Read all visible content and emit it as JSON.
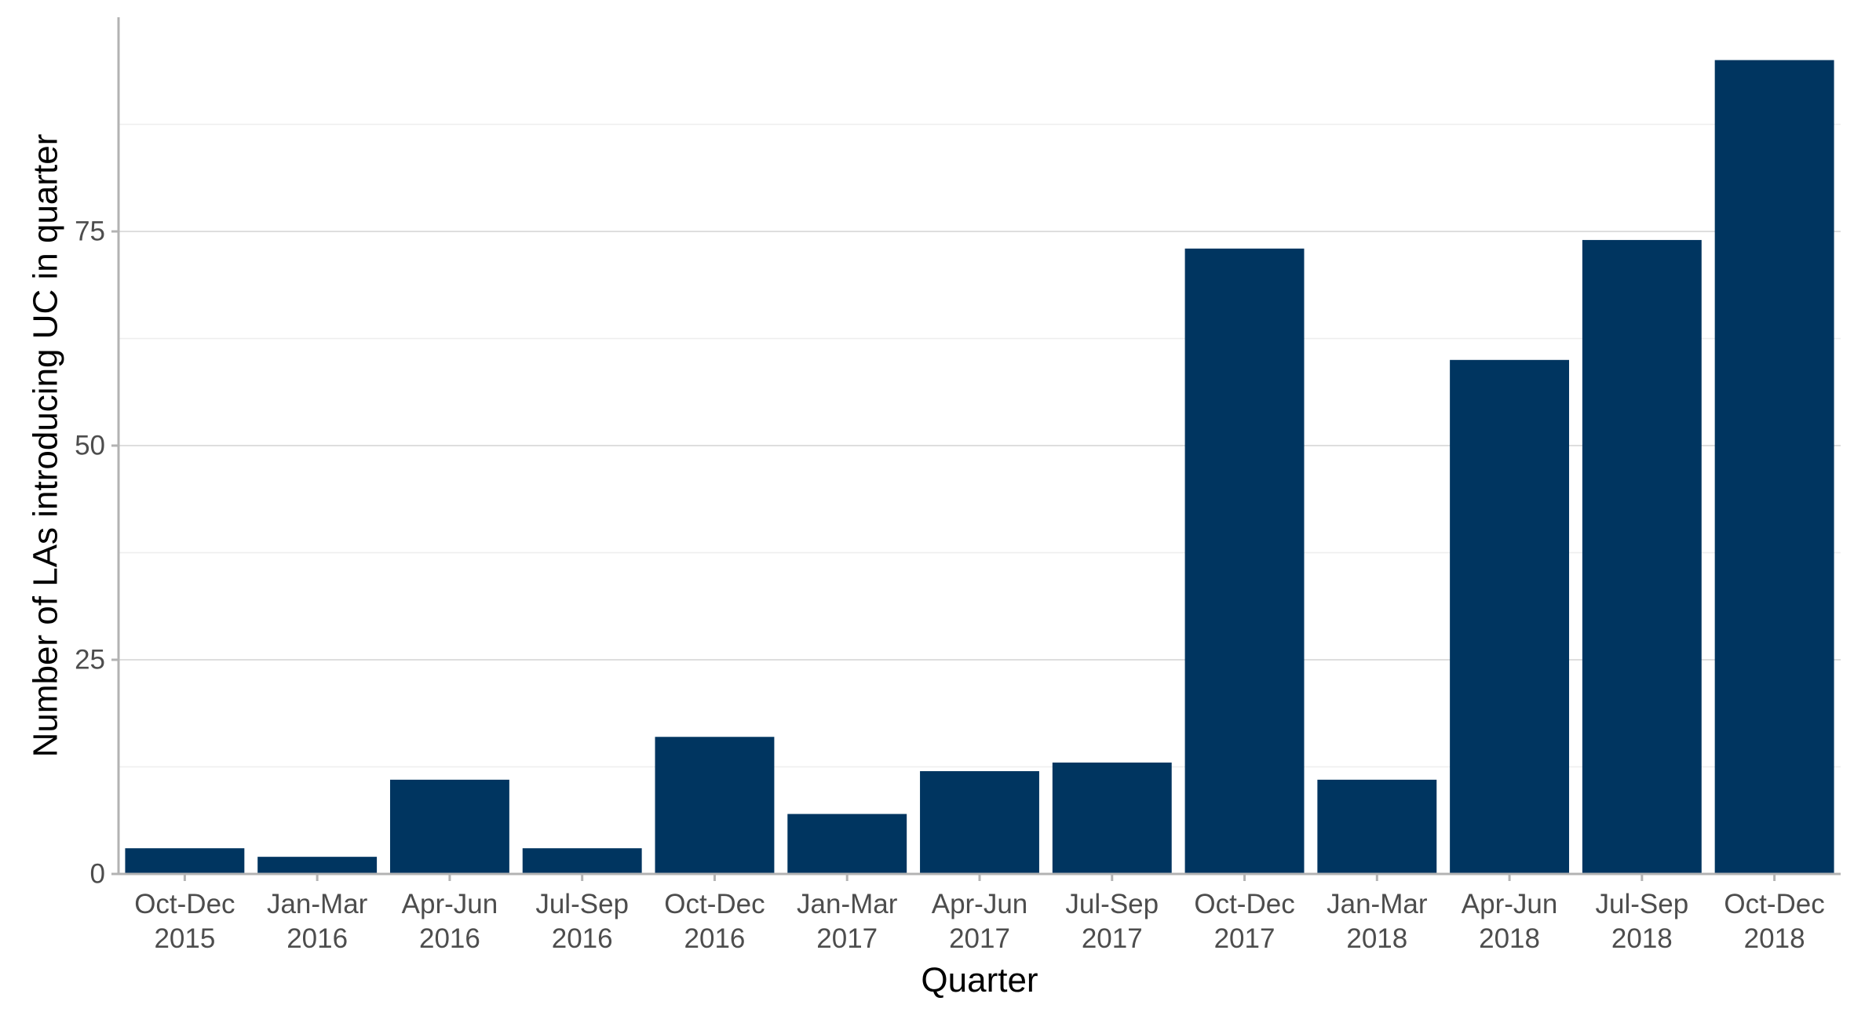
{
  "chart_data": {
    "type": "bar",
    "categories": [
      [
        "Oct-Dec",
        "2015"
      ],
      [
        "Jan-Mar",
        "2016"
      ],
      [
        "Apr-Jun",
        "2016"
      ],
      [
        "Jul-Sep",
        "2016"
      ],
      [
        "Oct-Dec",
        "2016"
      ],
      [
        "Jan-Mar",
        "2017"
      ],
      [
        "Apr-Jun",
        "2017"
      ],
      [
        "Jul-Sep",
        "2017"
      ],
      [
        "Oct-Dec",
        "2017"
      ],
      [
        "Jan-Mar",
        "2018"
      ],
      [
        "Apr-Jun",
        "2018"
      ],
      [
        "Jul-Sep",
        "2018"
      ],
      [
        "Oct-Dec",
        "2018"
      ]
    ],
    "values": [
      3,
      2,
      11,
      3,
      16,
      7,
      12,
      13,
      73,
      11,
      60,
      74,
      95
    ],
    "xlabel": "Quarter",
    "ylabel": "Number of LAs introducing UC in quarter",
    "ylim": [
      0,
      100
    ],
    "yticks": [
      0,
      25,
      50,
      75
    ],
    "ytick_labels": [
      "0",
      "25",
      "50",
      "75"
    ],
    "minor_gridlines": [
      12.5,
      37.5,
      62.5,
      87.5
    ],
    "grid": true,
    "legend": "none",
    "colors": {
      "bar": "#003560",
      "grid_major": "#dedede",
      "grid_minor": "#eeeeee",
      "axis": "#b3b3b3",
      "tick_label": "#4d4d4d",
      "axis_title": "#000000"
    }
  }
}
